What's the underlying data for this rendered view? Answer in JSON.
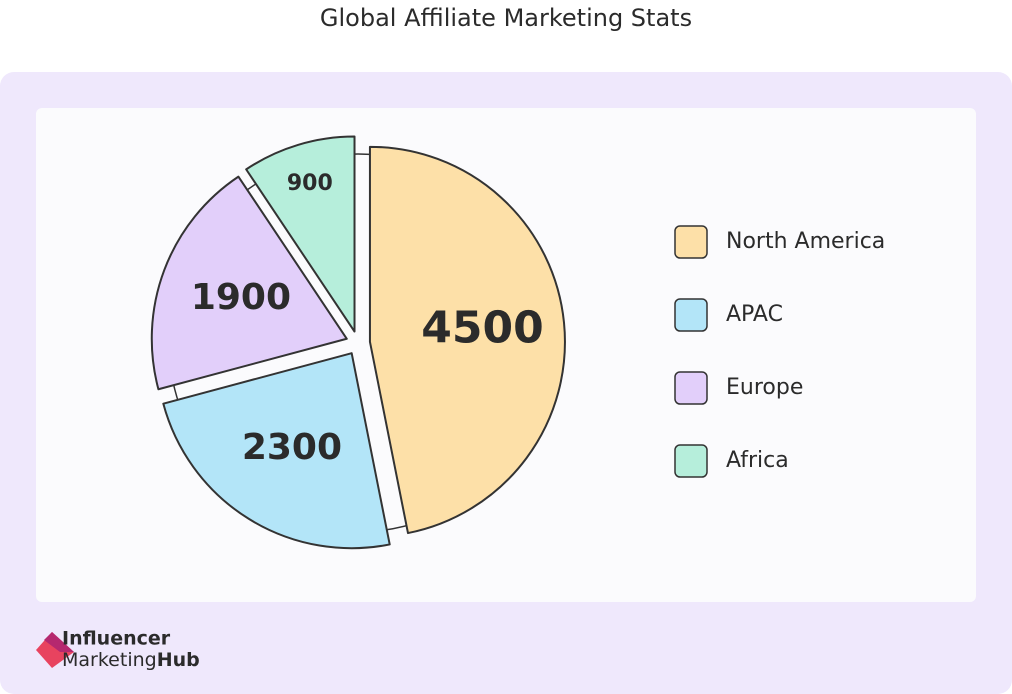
{
  "chart_data": {
    "type": "pie",
    "title": "Global Affiliate Marketing Stats",
    "categories": [
      "North America",
      "APAC",
      "Europe",
      "Africa"
    ],
    "values": [
      4500,
      2300,
      1900,
      900
    ],
    "colors": [
      "#fde0a8",
      "#b3e5f8",
      "#e2cffa",
      "#b6eedb"
    ],
    "legend": "right"
  },
  "logo": {
    "line1": "Influencer",
    "line2": "Marketing",
    "line3": "Hub"
  }
}
